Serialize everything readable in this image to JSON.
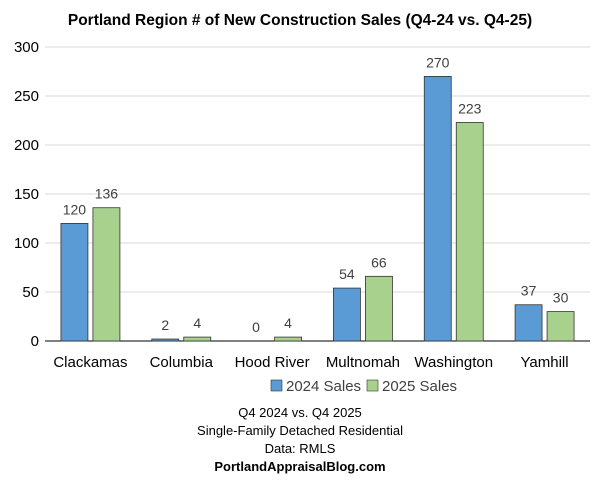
{
  "chart_data": {
    "type": "bar",
    "title": "Portland Region # of New Construction Sales (Q4-24 vs. Q4-25)",
    "categories": [
      "Clackamas",
      "Columbia",
      "Hood River",
      "Multnomah",
      "Washington",
      "Yamhill"
    ],
    "series": [
      {
        "name": "2024 Sales",
        "values": [
          120,
          2,
          0,
          54,
          270,
          37
        ],
        "color": "#5b9bd5"
      },
      {
        "name": "2025 Sales",
        "values": [
          136,
          4,
          4,
          66,
          223,
          30
        ],
        "color": "#a9d18e"
      }
    ],
    "ylim": [
      0,
      300
    ],
    "yticks": [
      0,
      50,
      100,
      150,
      200,
      250,
      300
    ],
    "grid": true,
    "legend": "bottom",
    "xlabel": "",
    "ylabel": ""
  },
  "footer": {
    "line1": "Q4 2024 vs. Q4 2025",
    "line2": "Single-Family Detached Residential",
    "line3": "Data: RMLS",
    "line4": "PortlandAppraisalBlog.com"
  }
}
